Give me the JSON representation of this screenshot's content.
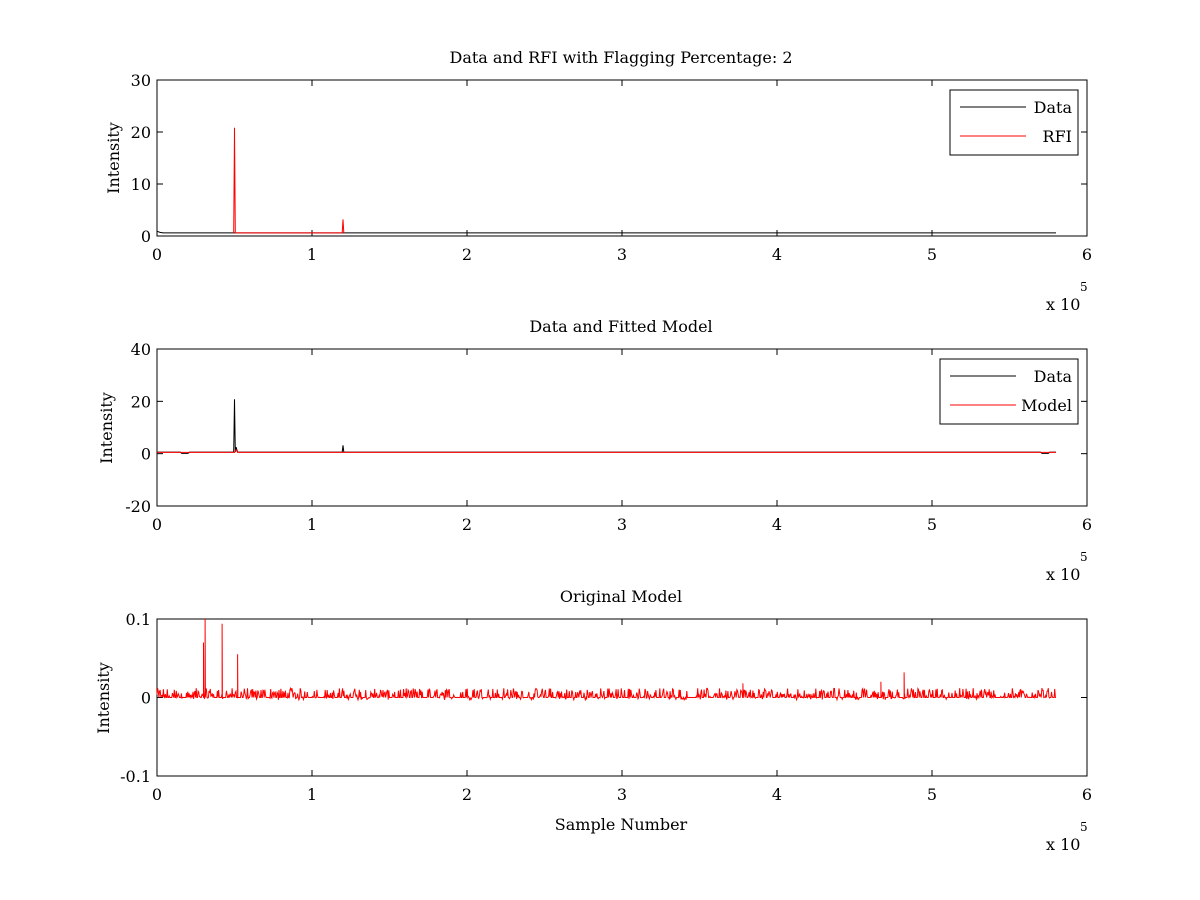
{
  "chart_data": [
    {
      "type": "line",
      "title": "Data and RFI with Flagging Percentage: 2",
      "xlabel": "",
      "ylabel": "Intensity",
      "x_multiplier": "x 10",
      "x_multiplier_exp": "5",
      "xlim": [
        0,
        600000
      ],
      "ylim": [
        0,
        30
      ],
      "xticks": [
        "0",
        "1",
        "2",
        "3",
        "4",
        "5",
        "6"
      ],
      "yticks": [
        "0",
        "10",
        "20",
        "30"
      ],
      "xtick_values": [
        0,
        100000,
        200000,
        300000,
        400000,
        500000,
        600000
      ],
      "ytick_values": [
        0,
        10,
        20,
        30
      ],
      "legend": {
        "position": "top-right",
        "entries": [
          "Data",
          "RFI"
        ]
      },
      "series": [
        {
          "name": "Data",
          "color": "#000000",
          "x": [
            0,
            2000,
            4000,
            6000,
            10000,
            20000,
            30000,
            40000,
            49000,
            50000,
            51000,
            60000,
            80000,
            100000,
            119000,
            120000,
            121000,
            150000,
            200000,
            250000,
            300000,
            350000,
            400000,
            450000,
            500000,
            550000,
            575000,
            580000
          ],
          "y": [
            0.9,
            0.7,
            0.6,
            0.6,
            0.6,
            0.6,
            0.6,
            0.6,
            0.6,
            0.6,
            0.6,
            0.6,
            0.6,
            0.6,
            0.6,
            0.6,
            0.6,
            0.6,
            0.6,
            0.6,
            0.6,
            0.6,
            0.6,
            0.6,
            0.6,
            0.6,
            0.6,
            0.6
          ]
        },
        {
          "name": "RFI",
          "color": "#ff0000",
          "x": [
            49500,
            50000,
            50500,
            55000,
            58000,
            119500,
            120000,
            120500
          ],
          "y": [
            0.6,
            20.8,
            0.6,
            0.6,
            0.6,
            0.6,
            3.2,
            0.6
          ]
        }
      ]
    },
    {
      "type": "line",
      "title": "Data and Fitted Model",
      "xlabel": "",
      "ylabel": "Intensity",
      "x_multiplier": "x 10",
      "x_multiplier_exp": "5",
      "xlim": [
        0,
        600000
      ],
      "ylim": [
        -20,
        40
      ],
      "xticks": [
        "0",
        "1",
        "2",
        "3",
        "4",
        "5",
        "6"
      ],
      "yticks": [
        "-20",
        "0",
        "20",
        "40"
      ],
      "xtick_values": [
        0,
        100000,
        200000,
        300000,
        400000,
        500000,
        600000
      ],
      "ytick_values": [
        -20,
        0,
        20,
        40
      ],
      "legend": {
        "position": "top-right",
        "entries": [
          "Data",
          "Model"
        ]
      },
      "series": [
        {
          "name": "Data",
          "color": "#000000",
          "x": [
            0,
            10000,
            15000,
            16000,
            20000,
            21000,
            49500,
            50000,
            50500,
            51000,
            52000,
            53000,
            119500,
            120000,
            120500,
            300000,
            570000,
            571000,
            575000,
            576000,
            580000
          ],
          "y": [
            0.6,
            0.6,
            0.6,
            0.1,
            0.1,
            0.6,
            0.6,
            20.8,
            0.6,
            2.5,
            0.6,
            0.6,
            0.6,
            3.2,
            0.6,
            0.6,
            0.6,
            0.1,
            0.1,
            0.6,
            0.6
          ]
        },
        {
          "name": "Model",
          "color": "#ff0000",
          "x": [
            0,
            50000,
            51000,
            52000,
            580000
          ],
          "y": [
            0.5,
            0.5,
            1.5,
            0.5,
            0.5
          ]
        }
      ]
    },
    {
      "type": "line",
      "title": "Original Model",
      "xlabel": "Sample Number",
      "ylabel": "Intensity",
      "x_multiplier": "x 10",
      "x_multiplier_exp": "5",
      "xlim": [
        0,
        600000
      ],
      "ylim": [
        -0.1,
        0.1
      ],
      "xticks": [
        "0",
        "1",
        "2",
        "3",
        "4",
        "5",
        "6"
      ],
      "yticks": [
        "-0.1",
        "0",
        "0.1"
      ],
      "xtick_values": [
        0,
        100000,
        200000,
        300000,
        400000,
        500000,
        600000
      ],
      "ytick_values": [
        -0.1,
        0,
        0.1
      ],
      "legend": null,
      "series": [
        {
          "name": "",
          "color": "#ff0000",
          "noise_amplitude": 0.012,
          "x_range": [
            0,
            580000
          ],
          "spikes_x": [
            30000,
            31000,
            42000,
            52000,
            378000,
            467000,
            482000
          ],
          "spikes_y": [
            0.07,
            0.1,
            0.094,
            0.055,
            0.018,
            0.02,
            0.032
          ]
        }
      ]
    }
  ]
}
